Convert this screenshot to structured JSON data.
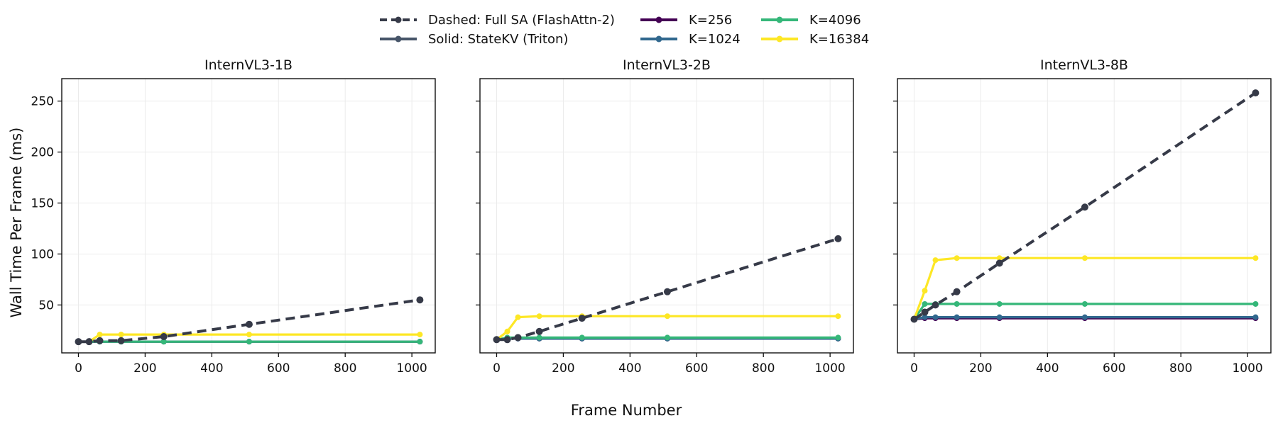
{
  "legend": {
    "style_entries": [
      {
        "label": "Dashed: Full SA (FlashAttn-2)",
        "color": "#363a48",
        "dash": true
      },
      {
        "label": "Solid: StateKV (Triton)",
        "color": "#475569",
        "dash": false
      }
    ],
    "k_entries": [
      {
        "label": "K=256",
        "color": "#440154"
      },
      {
        "label": "K=1024",
        "color": "#31688e"
      },
      {
        "label": "K=4096",
        "color": "#35b779"
      },
      {
        "label": "K=16384",
        "color": "#fde725"
      }
    ]
  },
  "shared_xlabel": "Frame Number",
  "shared_ylabel": "Wall Time Per Frame (ms)",
  "chart_data": [
    {
      "type": "line",
      "title": "InternVL3-1B",
      "xlim": [
        -50,
        1070
      ],
      "ylim": [
        3,
        272
      ],
      "xticks": [
        0,
        200,
        400,
        600,
        800,
        1000
      ],
      "yticks": [
        50,
        100,
        150,
        200,
        250
      ],
      "grid": true,
      "x": [
        0,
        32,
        64,
        128,
        256,
        512,
        1024
      ],
      "series": [
        {
          "name": "Full SA (FlashAttn-2)",
          "dashed": true,
          "values": [
            14,
            14,
            15,
            15,
            19,
            31,
            55
          ]
        },
        {
          "name": "K=256",
          "values": [
            14,
            14,
            14,
            14,
            14,
            14,
            14
          ]
        },
        {
          "name": "K=1024",
          "values": [
            14,
            14,
            14,
            14,
            14,
            14,
            14
          ]
        },
        {
          "name": "K=4096",
          "values": [
            14,
            14,
            14,
            14,
            14,
            14,
            14
          ]
        },
        {
          "name": "K=16384",
          "values": [
            14,
            14,
            21,
            21,
            21,
            21,
            21
          ]
        }
      ]
    },
    {
      "type": "line",
      "title": "InternVL3-2B",
      "xlim": [
        -50,
        1070
      ],
      "ylim": [
        3,
        272
      ],
      "xticks": [
        0,
        200,
        400,
        600,
        800,
        1000
      ],
      "yticks": [
        50,
        100,
        150,
        200,
        250
      ],
      "grid": true,
      "x": [
        0,
        32,
        64,
        128,
        256,
        512,
        1024
      ],
      "series": [
        {
          "name": "Full SA (FlashAttn-2)",
          "dashed": true,
          "values": [
            16,
            16,
            18,
            24,
            37,
            63,
            115
          ]
        },
        {
          "name": "K=256",
          "values": [
            16,
            17,
            17,
            17,
            17,
            17,
            17
          ]
        },
        {
          "name": "K=1024",
          "values": [
            16,
            17,
            17,
            17,
            17,
            17,
            17
          ]
        },
        {
          "name": "K=4096",
          "values": [
            16,
            18,
            18,
            18,
            18,
            18,
            18
          ]
        },
        {
          "name": "K=16384",
          "values": [
            16,
            24,
            38,
            39,
            39,
            39,
            39
          ]
        }
      ]
    },
    {
      "type": "line",
      "title": "InternVL3-8B",
      "xlim": [
        -50,
        1070
      ],
      "ylim": [
        3,
        272
      ],
      "xticks": [
        0,
        200,
        400,
        600,
        800,
        1000
      ],
      "yticks": [
        50,
        100,
        150,
        200,
        250
      ],
      "grid": true,
      "x": [
        0,
        32,
        64,
        96,
        128,
        256,
        512,
        1024
      ],
      "series": [
        {
          "name": "Full SA (FlashAttn-2)",
          "dashed": true,
          "x": [
            0,
            32,
            64,
            128,
            256,
            512,
            1024
          ],
          "values": [
            36,
            43,
            50,
            63,
            91,
            146,
            258
          ]
        },
        {
          "name": "K=256",
          "x": [
            0,
            32,
            64,
            128,
            256,
            512,
            1024
          ],
          "values": [
            36,
            37,
            37,
            37,
            37,
            37,
            37
          ]
        },
        {
          "name": "K=1024",
          "x": [
            0,
            32,
            64,
            128,
            256,
            512,
            1024
          ],
          "values": [
            36,
            38,
            38,
            38,
            38,
            38,
            38
          ]
        },
        {
          "name": "K=4096",
          "x": [
            0,
            32,
            64,
            128,
            256,
            512,
            1024
          ],
          "values": [
            36,
            51,
            51,
            51,
            51,
            51,
            51
          ]
        },
        {
          "name": "K=16384",
          "x": [
            0,
            32,
            64,
            128,
            256,
            512,
            1024
          ],
          "values": [
            36,
            64,
            94,
            96,
            96,
            96,
            96
          ]
        }
      ]
    }
  ]
}
